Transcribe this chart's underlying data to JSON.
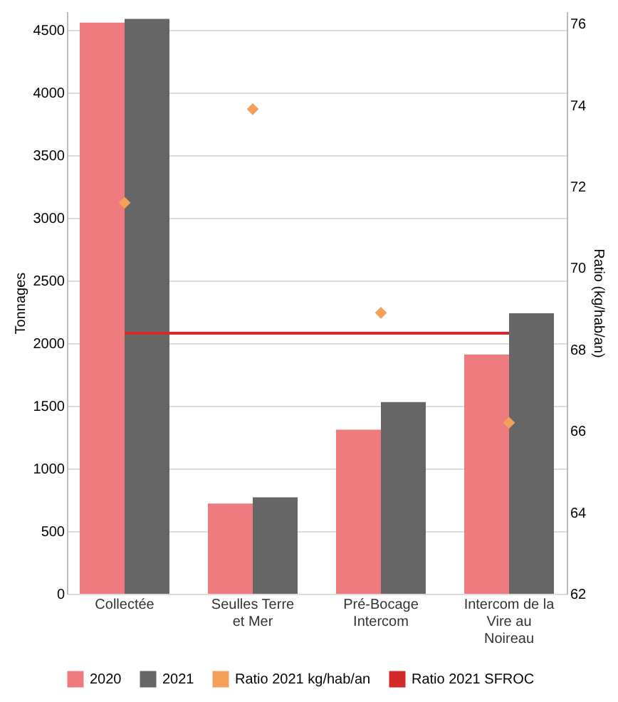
{
  "chart_data": {
    "type": "bar",
    "xlabel": null,
    "ylabel": "Tonnages",
    "y2label": "Ratio (kg/hab/an)",
    "categories": [
      "Collectée",
      "Seulles Terre et Mer",
      "Pré-Bocage Intercom",
      "Intercom de la Vire au Noireau"
    ],
    "series": [
      {
        "name": "2020",
        "color": "#ee7b7e",
        "values": [
          4560,
          720,
          1310,
          1910
        ]
      },
      {
        "name": "2021",
        "color": "#666666",
        "values": [
          4590,
          770,
          1530,
          2240
        ]
      },
      {
        "name": "Ratio 2021 kg/hab/an",
        "type": "scatter",
        "axis": "y2",
        "marker": "diamond",
        "color": "#f5a05a",
        "values": [
          71.6,
          73.9,
          68.9,
          66.2
        ]
      },
      {
        "name": "Ratio 2021 SFROC",
        "type": "line",
        "axis": "y2",
        "color": "#d42a2a",
        "values": [
          68.4,
          68.4,
          68.4,
          68.4
        ]
      }
    ],
    "ylim": [
      0,
      4650
    ],
    "yticks": [
      0,
      500,
      1000,
      1500,
      2000,
      2500,
      3000,
      3500,
      4000,
      4500
    ],
    "y2lim": [
      62,
      76.3
    ],
    "y2ticks": [
      62,
      64,
      66,
      68,
      70,
      72,
      74,
      76
    ],
    "grid": "y",
    "legend": "bottom"
  }
}
